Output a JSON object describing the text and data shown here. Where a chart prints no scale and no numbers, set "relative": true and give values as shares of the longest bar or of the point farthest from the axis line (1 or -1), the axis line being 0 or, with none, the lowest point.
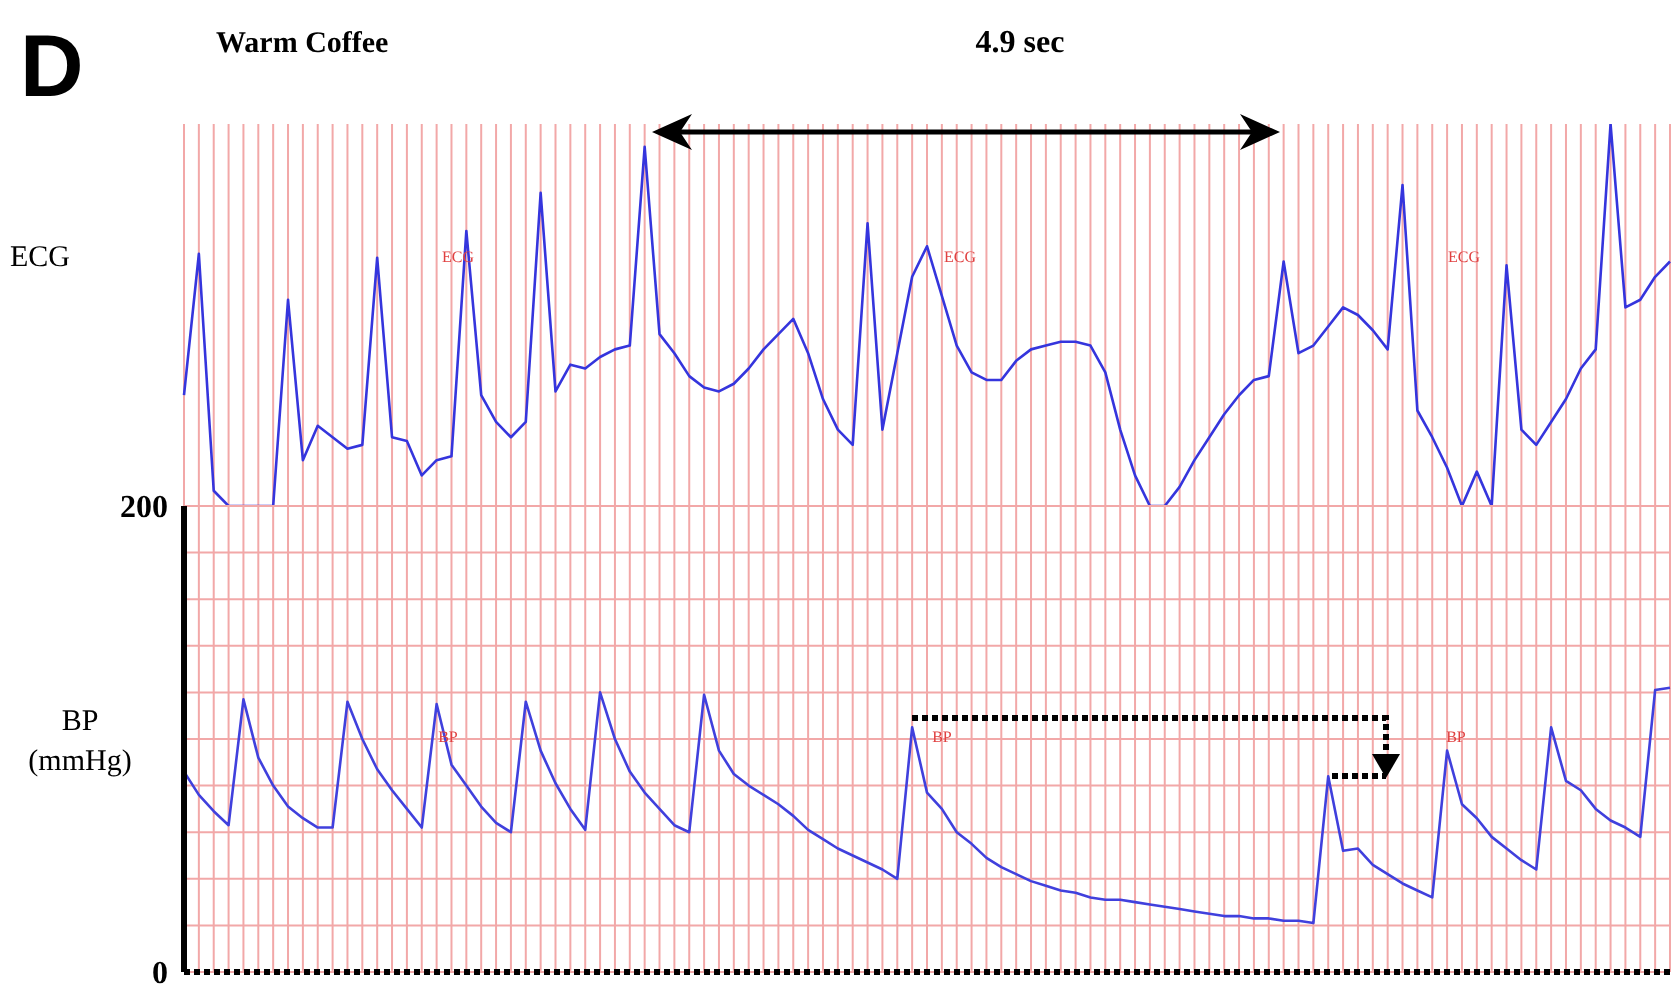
{
  "chart_data": [
    {
      "type": "line",
      "title": "Warm Coffee",
      "ylabel": "ECG",
      "relative": true,
      "grid": "x",
      "tick_labels": false,
      "marker": "none",
      "line_style": "solid",
      "annotations": [
        "D",
        "4.9 sec",
        "ECG",
        "ECG",
        "ECG"
      ],
      "categories": [
        null,
        null,
        null,
        null,
        null,
        null,
        null,
        null,
        null,
        null,
        null,
        null,
        null,
        null,
        null,
        null,
        null,
        null,
        null,
        null,
        null,
        null,
        null,
        null,
        null,
        null,
        null,
        null,
        null,
        null,
        null,
        null,
        null,
        null,
        null,
        null,
        null,
        null,
        null,
        null,
        null,
        null,
        null,
        null,
        null,
        null,
        null,
        null,
        null,
        null,
        null,
        null,
        null,
        null,
        null,
        null,
        null,
        null,
        null,
        null,
        null,
        null,
        null,
        null,
        null,
        null,
        null,
        null,
        null,
        null,
        null,
        null,
        null,
        null,
        null,
        null,
        null,
        null,
        null,
        null,
        null,
        null,
        null,
        null,
        null,
        null,
        null,
        null,
        null,
        null,
        null,
        null,
        null,
        null,
        null,
        null,
        null,
        null,
        null,
        null,
        null
      ],
      "series": [
        {
          "color": "#3535dd",
          "values": [
            0.29,
            0.66,
            0.04,
            0,
            0,
            0,
            0,
            0.54,
            0.12,
            0.21,
            0.18,
            0.15,
            0.16,
            0.65,
            0.18,
            0.17,
            0.08,
            0.12,
            0.13,
            0.72,
            0.29,
            0.22,
            0.18,
            0.22,
            0.82,
            0.3,
            0.37,
            0.36,
            0.39,
            0.41,
            0.42,
            0.94,
            0.45,
            0.4,
            0.34,
            0.31,
            0.3,
            0.32,
            0.36,
            0.41,
            0.45,
            0.49,
            0.4,
            0.28,
            0.2,
            0.16,
            0.74,
            0.2,
            0.4,
            0.6,
            0.68,
            0.55,
            0.42,
            0.35,
            0.33,
            0.33,
            0.38,
            0.41,
            0.42,
            0.43,
            0.43,
            0.42,
            0.35,
            0.2,
            0.08,
            0,
            0,
            0.05,
            0.12,
            0.18,
            0.24,
            0.29,
            0.33,
            0.34,
            0.64,
            0.4,
            0.42,
            0.47,
            0.52,
            0.5,
            0.46,
            0.41,
            0.84,
            0.25,
            0.18,
            0.1,
            0,
            0.09,
            0,
            0.63,
            0.2,
            0.16,
            0.22,
            0.28,
            0.36,
            0.41,
            1,
            0.52,
            0.54,
            0.6,
            0.64
          ]
        }
      ]
    },
    {
      "type": "line",
      "ylabel": "BP (mmHg)",
      "grid": true,
      "tick_labels": "y",
      "marker": "none",
      "line_style": "solid",
      "annotations": [
        "BP",
        "BP",
        "BP"
      ],
      "ylim": [
        0,
        200
      ],
      "yticks": [
        0,
        {
          "value": 20,
          "label": null
        },
        {
          "value": 40,
          "label": null
        },
        {
          "value": 60,
          "label": null
        },
        {
          "value": 80,
          "label": null
        },
        {
          "value": 100,
          "label": null
        },
        {
          "value": 120,
          "label": null
        },
        {
          "value": 140,
          "label": null
        },
        {
          "value": 160,
          "label": null
        },
        {
          "value": 180,
          "label": null
        },
        200
      ],
      "categories": [
        null,
        null,
        null,
        null,
        null,
        null,
        null,
        null,
        null,
        null,
        null,
        null,
        null,
        null,
        null,
        null,
        null,
        null,
        null,
        null,
        null,
        null,
        null,
        null,
        null,
        null,
        null,
        null,
        null,
        null,
        null,
        null,
        null,
        null,
        null,
        null,
        null,
        null,
        null,
        null,
        null,
        null,
        null,
        null,
        null,
        null,
        null,
        null,
        null,
        null,
        null,
        null,
        null,
        null,
        null,
        null,
        null,
        null,
        null,
        null,
        null,
        null,
        null,
        null,
        null,
        null,
        null,
        null,
        null,
        null,
        null,
        null,
        null,
        null,
        null,
        null,
        null,
        null,
        null,
        null,
        null,
        null,
        null,
        null,
        null,
        null,
        null,
        null,
        null,
        null,
        null,
        null,
        null,
        null,
        null,
        null,
        null,
        null,
        null,
        null,
        null
      ],
      "series": [
        {
          "color": "#4040dd",
          "values": [
            86,
            76,
            69,
            63,
            117,
            92,
            80,
            71,
            66,
            62,
            62,
            116,
            100,
            87,
            78,
            70,
            62,
            115,
            89,
            80,
            71,
            64,
            60,
            116,
            95,
            81,
            70,
            61,
            120,
            100,
            86,
            77,
            70,
            63,
            60,
            119,
            95,
            85,
            80,
            76,
            72,
            67,
            61,
            57,
            53,
            50,
            47,
            44,
            40,
            105,
            77,
            70,
            60,
            55,
            49,
            45,
            42,
            39,
            37,
            35,
            34,
            32,
            31,
            31,
            30,
            29,
            28,
            27,
            26,
            25,
            24,
            24,
            23,
            23,
            22,
            22,
            21,
            84,
            52,
            53,
            46,
            42,
            38,
            35,
            32,
            95,
            72,
            66,
            58,
            53,
            48,
            44,
            105,
            82,
            78,
            70,
            65,
            62,
            58,
            121,
            122
          ]
        }
      ]
    }
  ]
}
